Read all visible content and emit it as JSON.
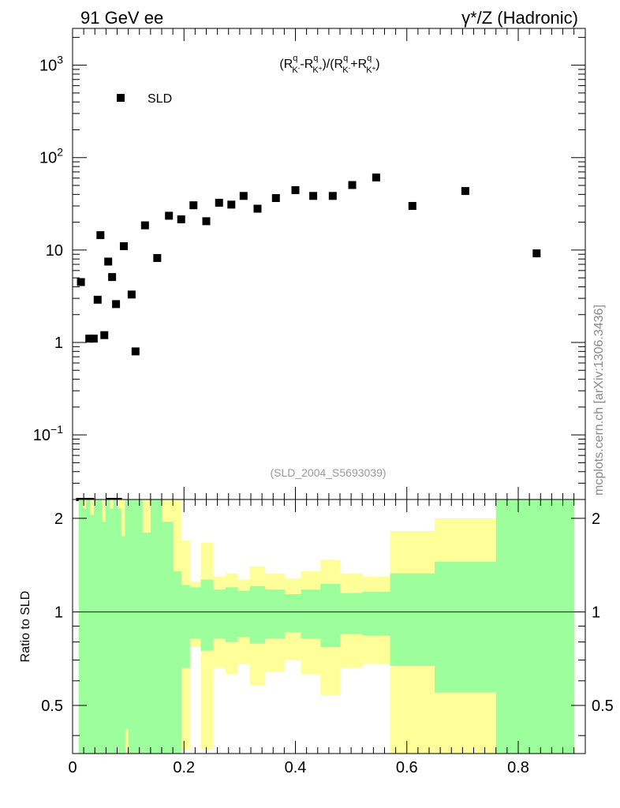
{
  "header": {
    "left": "91 GeV ee",
    "right": "γ*/Z (Hadronic)"
  },
  "watermark": "mcplots.cern.ch [arXiv:1306.3436]",
  "analysis_id": "(SLD_2004_S5693039)",
  "colors": {
    "band_inner": "#9cff9c",
    "band_outer": "#ffff99",
    "marker": "#000000"
  },
  "chart_data": [
    {
      "type": "scatter",
      "title": "",
      "observable": "(R^q_K- - R^q_K+)/(R^q_K- + R^q_K+)",
      "observable_parts": {
        "open": "(R",
        "minus": "-R",
        "close_mid": ")/(R",
        "plus": "+R",
        "close": ")",
        "q": "q",
        "km": "K",
        "kms": "-",
        "kp": "K",
        "kps": "+"
      },
      "yscale": "log",
      "ylim": [
        0.02,
        2500
      ],
      "xlim": [
        0,
        0.91
      ],
      "yticks": [
        {
          "value": 0.1,
          "label_base": "10",
          "label_exp": "−1"
        },
        {
          "value": 1,
          "label_base": "1",
          "label_exp": ""
        },
        {
          "value": 10,
          "label_base": "10",
          "label_exp": ""
        },
        {
          "value": 100,
          "label_base": "10",
          "label_exp": "2"
        },
        {
          "value": 1000,
          "label_base": "10",
          "label_exp": "3"
        }
      ],
      "legend": {
        "position": "top-left",
        "entries": [
          "SLD"
        ]
      },
      "series": [
        {
          "name": "SLD",
          "marker": "square",
          "x": [
            0.015,
            0.03,
            0.038,
            0.045,
            0.05,
            0.057,
            0.064,
            0.071,
            0.078,
            0.092,
            0.106,
            0.113,
            0.13,
            0.152,
            0.173,
            0.195,
            0.217,
            0.24,
            0.263,
            0.285,
            0.307,
            0.332,
            0.365,
            0.4,
            0.432,
            0.467,
            0.502,
            0.545,
            0.61,
            0.705,
            0.833
          ],
          "y": [
            4.5,
            1.1,
            1.1,
            2.9,
            14.5,
            1.2,
            7.5,
            5.1,
            2.6,
            11.0,
            3.3,
            0.8,
            18.5,
            8.2,
            23.5,
            21.5,
            30.5,
            20.5,
            32.5,
            31.0,
            38.5,
            28.0,
            36.5,
            44.5,
            38.5,
            38.5,
            50.5,
            61.0,
            30.0,
            43.5,
            9.2
          ]
        }
      ]
    },
    {
      "type": "area",
      "ylabel": "Ratio to SLD",
      "xlim": [
        0,
        0.91
      ],
      "ylim": [
        0.35,
        2.3
      ],
      "xticks": [
        0,
        0.2,
        0.4,
        0.6,
        0.8
      ],
      "xtick_labels": [
        "0",
        "0.2",
        "0.4",
        "0.6",
        "0.8"
      ],
      "yticks": [
        0.5,
        1,
        2
      ],
      "ytick_labels": [
        "0.5",
        "1",
        "2"
      ],
      "reference_line": 1,
      "bins": [
        {
          "lo": 0.011,
          "hi": 0.018,
          "out": [
            0.35,
            2.3
          ],
          "in": [
            0.35,
            2.3
          ]
        },
        {
          "lo": 0.018,
          "hi": 0.024,
          "out": [
            0.35,
            2.3
          ],
          "in": [
            0.35,
            2.15
          ]
        },
        {
          "lo": 0.024,
          "hi": 0.031,
          "out": [
            0.35,
            2.3
          ],
          "in": [
            0.35,
            2.3
          ]
        },
        {
          "lo": 0.031,
          "hi": 0.038,
          "out": [
            0.35,
            2.3
          ],
          "in": [
            0.35,
            2.05
          ]
        },
        {
          "lo": 0.038,
          "hi": 0.045,
          "out": [
            0.35,
            2.3
          ],
          "in": [
            0.35,
            2.3
          ]
        },
        {
          "lo": 0.045,
          "hi": 0.052,
          "out": [
            0.35,
            2.3
          ],
          "in": [
            0.35,
            2.3
          ]
        },
        {
          "lo": 0.052,
          "hi": 0.059,
          "out": [
            0.35,
            2.3
          ],
          "in": [
            0.35,
            1.95
          ]
        },
        {
          "lo": 0.059,
          "hi": 0.066,
          "out": [
            0.35,
            2.3
          ],
          "in": [
            0.35,
            2.3
          ]
        },
        {
          "lo": 0.066,
          "hi": 0.073,
          "out": [
            0.35,
            2.3
          ],
          "in": [
            0.35,
            2.15
          ]
        },
        {
          "lo": 0.073,
          "hi": 0.08,
          "out": [
            0.35,
            2.3
          ],
          "in": [
            0.35,
            2.3
          ]
        },
        {
          "lo": 0.08,
          "hi": 0.087,
          "out": [
            0.35,
            2.3
          ],
          "in": [
            0.35,
            2.15
          ]
        },
        {
          "lo": 0.087,
          "hi": 0.094,
          "out": [
            0.35,
            2.3
          ],
          "in": [
            0.35,
            1.75
          ]
        },
        {
          "lo": 0.094,
          "hi": 0.1,
          "out": [
            0.35,
            2.3
          ],
          "in": [
            0.42,
            2.3
          ]
        },
        {
          "lo": 0.1,
          "hi": 0.125,
          "out": [
            0.35,
            2.3
          ],
          "in": [
            0.35,
            2.3
          ]
        },
        {
          "lo": 0.125,
          "hi": 0.14,
          "out": [
            0.35,
            2.3
          ],
          "in": [
            0.35,
            1.8
          ]
        },
        {
          "lo": 0.14,
          "hi": 0.16,
          "out": [
            0.35,
            2.3
          ],
          "in": [
            0.35,
            2.3
          ]
        },
        {
          "lo": 0.16,
          "hi": 0.18,
          "out": [
            0.35,
            2.3
          ],
          "in": [
            0.35,
            1.95
          ]
        },
        {
          "lo": 0.18,
          "hi": 0.195,
          "out": [
            0.35,
            2.3
          ],
          "in": [
            0.35,
            1.35
          ]
        },
        {
          "lo": 0.195,
          "hi": 0.21,
          "out": [
            0.36,
            1.7
          ],
          "in": [
            0.66,
            1.22
          ]
        },
        {
          "lo": 0.21,
          "hi": 0.23,
          "out": [
            0.77,
            1.25
          ],
          "in": [
            0.82,
            1.2
          ]
        },
        {
          "lo": 0.23,
          "hi": 0.252,
          "out": [
            0.36,
            1.67
          ],
          "in": [
            0.75,
            1.27
          ]
        },
        {
          "lo": 0.252,
          "hi": 0.274,
          "out": [
            0.66,
            1.3
          ],
          "in": [
            0.82,
            1.18
          ]
        },
        {
          "lo": 0.274,
          "hi": 0.296,
          "out": [
            0.63,
            1.33
          ],
          "in": [
            0.8,
            1.2
          ]
        },
        {
          "lo": 0.296,
          "hi": 0.318,
          "out": [
            0.68,
            1.27
          ],
          "in": [
            0.83,
            1.17
          ]
        },
        {
          "lo": 0.318,
          "hi": 0.345,
          "out": [
            0.58,
            1.4
          ],
          "in": [
            0.79,
            1.21
          ]
        },
        {
          "lo": 0.345,
          "hi": 0.38,
          "out": [
            0.64,
            1.33
          ],
          "in": [
            0.82,
            1.18
          ]
        },
        {
          "lo": 0.38,
          "hi": 0.41,
          "out": [
            0.7,
            1.28
          ],
          "in": [
            0.86,
            1.14
          ]
        },
        {
          "lo": 0.41,
          "hi": 0.445,
          "out": [
            0.63,
            1.35
          ],
          "in": [
            0.82,
            1.18
          ]
        },
        {
          "lo": 0.445,
          "hi": 0.48,
          "out": [
            0.54,
            1.47
          ],
          "in": [
            0.77,
            1.23
          ]
        },
        {
          "lo": 0.48,
          "hi": 0.52,
          "out": [
            0.66,
            1.33
          ],
          "in": [
            0.85,
            1.15
          ]
        },
        {
          "lo": 0.52,
          "hi": 0.57,
          "out": [
            0.68,
            1.3
          ],
          "in": [
            0.84,
            1.16
          ]
        },
        {
          "lo": 0.57,
          "hi": 0.65,
          "out": [
            0.35,
            1.82
          ],
          "in": [
            0.67,
            1.33
          ]
        },
        {
          "lo": 0.65,
          "hi": 0.76,
          "out": [
            0.35,
            2.0
          ],
          "in": [
            0.55,
            1.45
          ]
        },
        {
          "lo": 0.76,
          "hi": 0.9,
          "out": [
            0.35,
            2.3
          ],
          "in": [
            0.35,
            2.3
          ]
        }
      ]
    }
  ]
}
